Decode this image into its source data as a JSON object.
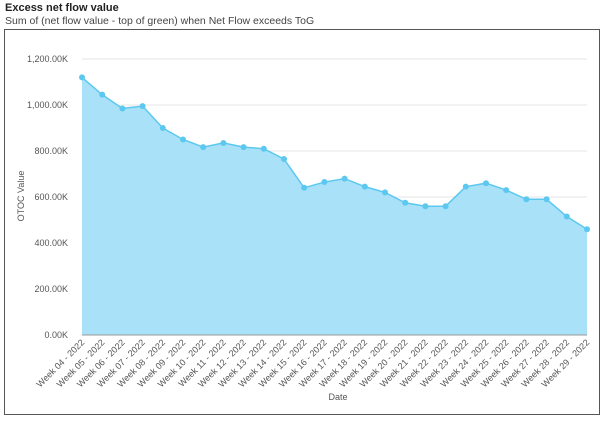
{
  "chart_data": {
    "type": "area",
    "title": "Excess net flow value",
    "subtitle": "Sum of (net flow value - top of green) when Net Flow exceeds ToG",
    "x_label": "Date",
    "y_label": "OTOC Value",
    "categories": [
      "Week 04 - 2022",
      "Week 05 - 2022",
      "Week 06 - 2022",
      "Week 07 - 2022",
      "Week 08 - 2022",
      "Week 09 - 2022",
      "Week 10 - 2022",
      "Week 11 - 2022",
      "Week 12 - 2022",
      "Week 13 - 2022",
      "Week 14 - 2022",
      "Week 15 - 2022",
      "Week 16 - 2022",
      "Week 17 - 2022",
      "Week 18 - 2022",
      "Week 19 - 2022",
      "Week 20 - 2022",
      "Week 21 - 2022",
      "Week 22 - 2022",
      "Week 23 - 2022",
      "Week 24 - 2022",
      "Week 25 - 2022",
      "Week 26 - 2022",
      "Week 27 - 2022",
      "Week 28 - 2022",
      "Week 29 - 2022"
    ],
    "values": [
      1120000,
      1045000,
      985000,
      995000,
      900000,
      850000,
      817000,
      835000,
      817000,
      810000,
      765000,
      640000,
      665000,
      680000,
      645000,
      620000,
      575000,
      560000,
      560000,
      645000,
      660000,
      630000,
      590000,
      590000,
      515000,
      460000
    ],
    "color": "#5cc8ef",
    "fill_color": "#a9e1f9",
    "ylim": [
      0,
      1200000
    ],
    "yticks": [
      {
        "value": 0,
        "label": "0.00K"
      },
      {
        "value": 200000,
        "label": "200.00K"
      },
      {
        "value": 400000,
        "label": "400.00K"
      },
      {
        "value": 600000,
        "label": "600.00K"
      },
      {
        "value": 800000,
        "label": "800.00K"
      },
      {
        "value": 1000000,
        "label": "1,000.00K"
      },
      {
        "value": 1200000,
        "label": "1,200.00K"
      }
    ],
    "grid": true
  }
}
